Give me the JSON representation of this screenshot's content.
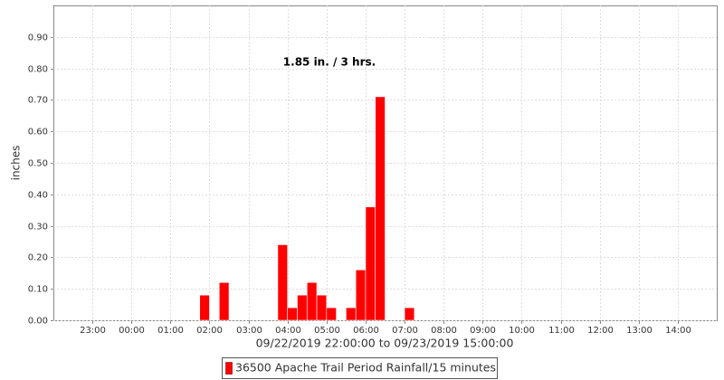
{
  "chart_data": {
    "type": "bar",
    "annotation": "1.85 in. / 3 hrs.",
    "ylabel": "inches",
    "xlabel": "09/22/2019 22:00:00 to 09/23/2019 15:00:00",
    "legend": "36500 Apache Trail Period Rainfall/15 minutes",
    "color": "#ff0000",
    "x": [
      "01:45",
      "02:15",
      "03:45",
      "04:00",
      "04:15",
      "04:30",
      "04:45",
      "05:00",
      "05:30",
      "05:45",
      "06:00",
      "06:15",
      "07:00"
    ],
    "values": [
      0.08,
      0.12,
      0.24,
      0.04,
      0.08,
      0.12,
      0.08,
      0.04,
      0.04,
      0.16,
      0.36,
      0.71,
      0.04
    ],
    "xlim": [
      "22:00",
      "15:00"
    ],
    "xticks": [
      "23:00",
      "00:00",
      "01:00",
      "02:00",
      "03:00",
      "04:00",
      "05:00",
      "06:00",
      "07:00",
      "08:00",
      "09:00",
      "10:00",
      "11:00",
      "12:00",
      "13:00",
      "14:00"
    ],
    "ylim": [
      0,
      1.0
    ],
    "yticks": [
      {
        "value": 0,
        "label": "0.00"
      },
      {
        "value": 0.1,
        "label": "0.10"
      },
      {
        "value": 0.2,
        "label": "0.20"
      },
      {
        "value": 0.3,
        "label": "0.30"
      },
      {
        "value": 0.4,
        "label": "0.40"
      },
      {
        "value": 0.5,
        "label": "0.50"
      },
      {
        "value": 0.6,
        "label": "0.60"
      },
      {
        "value": 0.7,
        "label": "0.70"
      },
      {
        "value": 0.8,
        "label": "0.80"
      },
      {
        "value": 0.9,
        "label": "0.90"
      }
    ],
    "grid": true
  }
}
